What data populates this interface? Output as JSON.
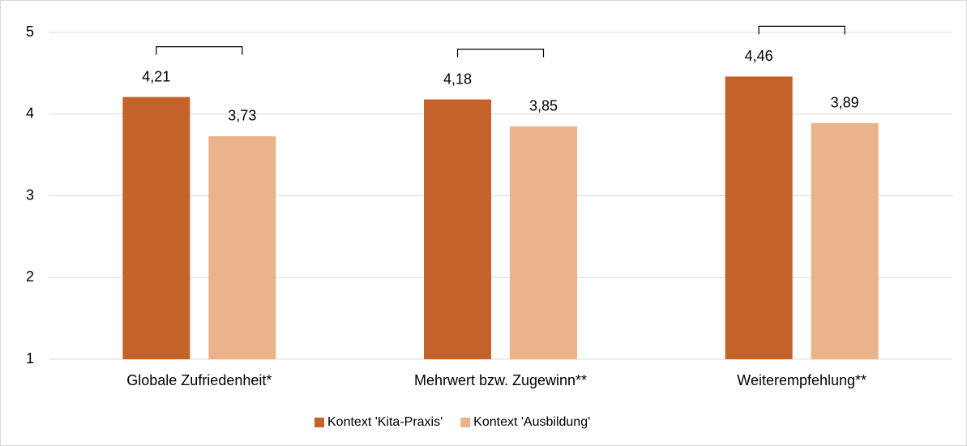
{
  "chart_data": {
    "type": "bar",
    "categories": [
      "Globale Zufriedenheit*",
      "Mehrwert bzw. Zugewinn**",
      "Weiterempfehlung**"
    ],
    "series": [
      {
        "name": "Kontext 'Kita-Praxis'",
        "color": "#c4622b",
        "values": [
          4.21,
          4.18,
          4.46
        ],
        "value_labels": [
          "4,21",
          "4,18",
          "4,46"
        ]
      },
      {
        "name": "Kontext 'Ausbildung'",
        "color": "#ebb389",
        "values": [
          3.73,
          3.85,
          3.89
        ],
        "value_labels": [
          "3,73",
          "3,85",
          "3,89"
        ]
      }
    ],
    "ylim": [
      1,
      5
    ],
    "yticks": [
      1,
      2,
      3,
      4,
      5
    ],
    "grid": true,
    "legend": "bottom"
  }
}
